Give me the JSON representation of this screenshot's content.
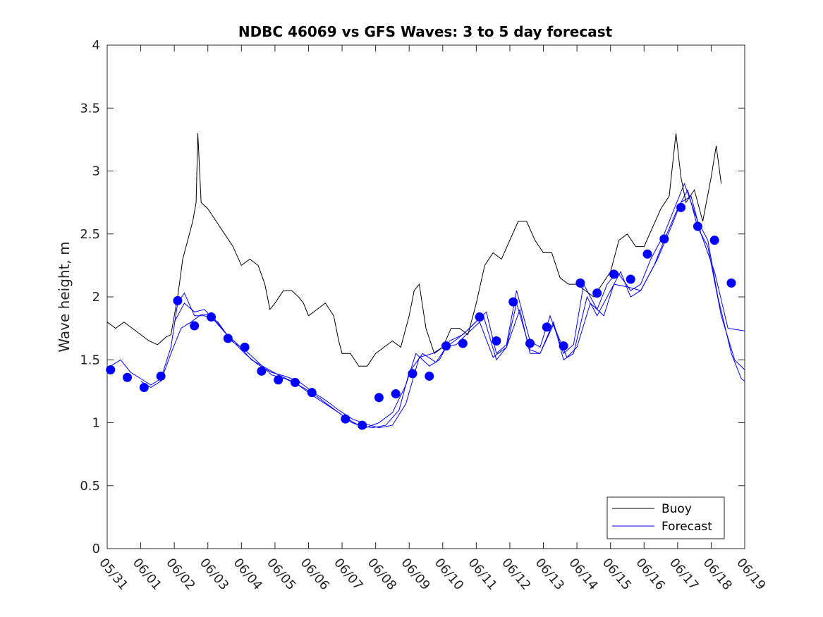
{
  "chart_data": {
    "type": "line",
    "title": "NDBC 46069 vs GFS Waves: 3 to 5 day forecast",
    "xlabel": "",
    "ylabel": "Wave height, m",
    "x_tick_labels": [
      "05/31",
      "06/01",
      "06/02",
      "06/03",
      "06/04",
      "06/05",
      "06/06",
      "06/07",
      "06/08",
      "06/09",
      "06/10",
      "06/11",
      "06/12",
      "06/13",
      "06/14",
      "06/15",
      "06/16",
      "06/17",
      "06/18",
      "06/19"
    ],
    "x_unit": "days since 05/31",
    "xlim": [
      0,
      19
    ],
    "ylim": [
      0,
      4
    ],
    "y_ticks": [
      0,
      0.5,
      1,
      1.5,
      2,
      2.5,
      3,
      3.5,
      4
    ],
    "grid": false,
    "legend_position": "bottom-right",
    "colors": {
      "buoy": "#000000",
      "forecast": "#0000ff",
      "markers": "#0000ff",
      "axes": "#262626"
    },
    "series": [
      {
        "name": "Buoy",
        "style": "line",
        "points": [
          [
            0.0,
            1.8
          ],
          [
            0.25,
            1.75
          ],
          [
            0.5,
            1.8
          ],
          [
            0.75,
            1.75
          ],
          [
            1.0,
            1.7
          ],
          [
            1.25,
            1.65
          ],
          [
            1.5,
            1.62
          ],
          [
            1.75,
            1.68
          ],
          [
            1.9,
            1.7
          ],
          [
            2.1,
            2.0
          ],
          [
            2.25,
            2.3
          ],
          [
            2.4,
            2.45
          ],
          [
            2.55,
            2.6
          ],
          [
            2.65,
            2.75
          ],
          [
            2.7,
            3.3
          ],
          [
            2.8,
            2.75
          ],
          [
            3.0,
            2.7
          ],
          [
            3.25,
            2.6
          ],
          [
            3.5,
            2.5
          ],
          [
            3.75,
            2.4
          ],
          [
            4.0,
            2.25
          ],
          [
            4.25,
            2.3
          ],
          [
            4.5,
            2.25
          ],
          [
            4.7,
            2.1
          ],
          [
            4.85,
            1.9
          ],
          [
            5.0,
            1.95
          ],
          [
            5.25,
            2.05
          ],
          [
            5.5,
            2.05
          ],
          [
            5.7,
            2.0
          ],
          [
            5.85,
            1.95
          ],
          [
            6.0,
            1.85
          ],
          [
            6.25,
            1.9
          ],
          [
            6.5,
            1.95
          ],
          [
            6.75,
            1.85
          ],
          [
            6.9,
            1.65
          ],
          [
            7.0,
            1.55
          ],
          [
            7.25,
            1.55
          ],
          [
            7.5,
            1.45
          ],
          [
            7.75,
            1.45
          ],
          [
            8.0,
            1.55
          ],
          [
            8.25,
            1.6
          ],
          [
            8.5,
            1.65
          ],
          [
            8.75,
            1.6
          ],
          [
            9.0,
            1.85
          ],
          [
            9.15,
            2.05
          ],
          [
            9.3,
            2.1
          ],
          [
            9.5,
            1.75
          ],
          [
            9.75,
            1.55
          ],
          [
            10.0,
            1.6
          ],
          [
            10.25,
            1.75
          ],
          [
            10.5,
            1.75
          ],
          [
            10.75,
            1.7
          ],
          [
            11.0,
            1.95
          ],
          [
            11.25,
            2.25
          ],
          [
            11.5,
            2.35
          ],
          [
            11.75,
            2.3
          ],
          [
            12.0,
            2.45
          ],
          [
            12.25,
            2.6
          ],
          [
            12.5,
            2.6
          ],
          [
            12.75,
            2.45
          ],
          [
            13.0,
            2.35
          ],
          [
            13.25,
            2.35
          ],
          [
            13.5,
            2.15
          ],
          [
            13.75,
            2.1
          ],
          [
            14.0,
            2.1
          ],
          [
            14.25,
            2.05
          ],
          [
            14.5,
            2.0
          ],
          [
            14.75,
            2.1
          ],
          [
            15.0,
            2.2
          ],
          [
            15.25,
            2.45
          ],
          [
            15.5,
            2.5
          ],
          [
            15.75,
            2.4
          ],
          [
            16.0,
            2.4
          ],
          [
            16.25,
            2.55
          ],
          [
            16.5,
            2.7
          ],
          [
            16.75,
            2.8
          ],
          [
            16.95,
            3.3
          ],
          [
            17.1,
            2.95
          ],
          [
            17.25,
            2.75
          ],
          [
            17.5,
            2.85
          ],
          [
            17.75,
            2.6
          ],
          [
            18.0,
            2.95
          ],
          [
            18.15,
            3.2
          ],
          [
            18.3,
            2.9
          ]
        ]
      },
      {
        "name": "Forecast",
        "style": "line",
        "ensemble": [
          [
            [
              0.1,
              1.45
            ],
            [
              0.4,
              1.5
            ],
            [
              0.7,
              1.4
            ],
            [
              1.0,
              1.35
            ],
            [
              1.3,
              1.3
            ],
            [
              1.6,
              1.35
            ],
            [
              1.9,
              1.6
            ],
            [
              2.1,
              1.95
            ],
            [
              2.3,
              2.03
            ],
            [
              2.6,
              1.85
            ],
            [
              2.9,
              1.85
            ],
            [
              3.3,
              1.8
            ],
            [
              3.7,
              1.65
            ],
            [
              4.1,
              1.58
            ],
            [
              4.5,
              1.48
            ],
            [
              4.9,
              1.38
            ],
            [
              5.3,
              1.35
            ],
            [
              5.7,
              1.3
            ],
            [
              6.1,
              1.22
            ],
            [
              6.5,
              1.15
            ],
            [
              6.9,
              1.08
            ],
            [
              7.3,
              1.0
            ],
            [
              7.7,
              0.96
            ],
            [
              8.1,
              1.0
            ],
            [
              8.5,
              1.08
            ],
            [
              8.9,
              1.3
            ],
            [
              9.2,
              1.55
            ],
            [
              9.6,
              1.45
            ],
            [
              9.9,
              1.5
            ],
            [
              10.2,
              1.65
            ],
            [
              10.6,
              1.7
            ],
            [
              10.9,
              1.78
            ],
            [
              11.3,
              1.88
            ],
            [
              11.6,
              1.55
            ],
            [
              11.9,
              1.62
            ],
            [
              12.2,
              2.05
            ],
            [
              12.6,
              1.65
            ],
            [
              12.9,
              1.6
            ],
            [
              13.2,
              1.85
            ],
            [
              13.6,
              1.55
            ],
            [
              13.9,
              1.62
            ],
            [
              14.2,
              2.1
            ],
            [
              14.6,
              1.9
            ],
            [
              14.9,
              2.1
            ],
            [
              15.2,
              2.2
            ],
            [
              15.6,
              2.05
            ],
            [
              15.9,
              2.1
            ],
            [
              16.2,
              2.3
            ],
            [
              16.6,
              2.5
            ],
            [
              16.9,
              2.7
            ],
            [
              17.2,
              2.9
            ],
            [
              17.6,
              2.6
            ],
            [
              17.9,
              2.45
            ],
            [
              18.2,
              2.0
            ],
            [
              18.6,
              1.55
            ],
            [
              18.9,
              1.35
            ],
            [
              19.0,
              1.33
            ]
          ],
          [
            [
              1.0,
              1.33
            ],
            [
              1.3,
              1.28
            ],
            [
              1.6,
              1.33
            ],
            [
              1.9,
              1.55
            ],
            [
              2.2,
              1.75
            ],
            [
              2.5,
              1.8
            ],
            [
              2.8,
              1.86
            ],
            [
              3.1,
              1.86
            ],
            [
              3.5,
              1.72
            ],
            [
              3.9,
              1.62
            ],
            [
              4.3,
              1.5
            ],
            [
              4.7,
              1.44
            ],
            [
              5.1,
              1.38
            ],
            [
              5.5,
              1.33
            ],
            [
              5.9,
              1.27
            ],
            [
              6.3,
              1.2
            ],
            [
              6.7,
              1.12
            ],
            [
              7.1,
              1.04
            ],
            [
              7.5,
              0.98
            ],
            [
              7.9,
              0.96
            ],
            [
              8.3,
              0.98
            ],
            [
              8.7,
              1.1
            ],
            [
              9.0,
              1.4
            ],
            [
              9.4,
              1.55
            ],
            [
              9.8,
              1.48
            ],
            [
              10.1,
              1.6
            ],
            [
              10.5,
              1.68
            ],
            [
              10.8,
              1.75
            ],
            [
              11.2,
              1.86
            ],
            [
              11.6,
              1.5
            ],
            [
              11.9,
              1.6
            ],
            [
              12.2,
              1.95
            ],
            [
              12.6,
              1.58
            ],
            [
              12.9,
              1.55
            ],
            [
              13.3,
              1.8
            ],
            [
              13.6,
              1.5
            ],
            [
              13.9,
              1.55
            ],
            [
              14.3,
              2.0
            ],
            [
              14.6,
              1.85
            ],
            [
              14.9,
              2.0
            ],
            [
              15.3,
              2.2
            ],
            [
              15.6,
              2.0
            ],
            [
              15.9,
              2.05
            ],
            [
              16.3,
              2.25
            ],
            [
              16.6,
              2.45
            ],
            [
              17.0,
              2.7
            ],
            [
              17.3,
              2.85
            ],
            [
              17.6,
              2.55
            ],
            [
              17.9,
              2.4
            ],
            [
              18.3,
              1.85
            ],
            [
              18.7,
              1.5
            ],
            [
              19.0,
              1.42
            ]
          ],
          [
            [
              2.0,
              1.8
            ],
            [
              2.3,
              1.95
            ],
            [
              2.6,
              1.88
            ],
            [
              2.9,
              1.9
            ],
            [
              3.3,
              1.78
            ],
            [
              3.7,
              1.66
            ],
            [
              4.1,
              1.55
            ],
            [
              4.5,
              1.46
            ],
            [
              4.9,
              1.4
            ],
            [
              5.3,
              1.37
            ],
            [
              5.7,
              1.33
            ],
            [
              6.1,
              1.25
            ],
            [
              6.5,
              1.18
            ],
            [
              6.9,
              1.1
            ],
            [
              7.3,
              1.03
            ],
            [
              7.7,
              0.99
            ],
            [
              8.1,
              0.96
            ],
            [
              8.5,
              0.98
            ],
            [
              8.9,
              1.15
            ],
            [
              9.3,
              1.52
            ],
            [
              9.7,
              1.55
            ],
            [
              10.0,
              1.6
            ],
            [
              10.4,
              1.62
            ],
            [
              10.7,
              1.7
            ],
            [
              11.1,
              1.8
            ],
            [
              11.5,
              1.52
            ],
            [
              11.9,
              1.6
            ],
            [
              12.3,
              1.9
            ],
            [
              12.6,
              1.55
            ],
            [
              12.9,
              1.55
            ],
            [
              13.3,
              1.78
            ],
            [
              13.7,
              1.52
            ],
            [
              14.0,
              1.6
            ],
            [
              14.4,
              1.95
            ],
            [
              14.8,
              1.85
            ],
            [
              15.1,
              2.1
            ],
            [
              15.5,
              2.08
            ],
            [
              15.9,
              2.05
            ],
            [
              16.4,
              2.3
            ],
            [
              16.8,
              2.55
            ],
            [
              17.1,
              2.75
            ],
            [
              17.4,
              2.8
            ],
            [
              17.7,
              2.5
            ],
            [
              18.1,
              2.2
            ],
            [
              18.5,
              1.75
            ],
            [
              19.0,
              1.73
            ]
          ]
        ]
      },
      {
        "name": "",
        "style": "markers",
        "points": [
          [
            0.1,
            1.42
          ],
          [
            0.6,
            1.36
          ],
          [
            1.1,
            1.28
          ],
          [
            1.6,
            1.37
          ],
          [
            2.1,
            1.97
          ],
          [
            2.6,
            1.77
          ],
          [
            3.1,
            1.84
          ],
          [
            3.6,
            1.67
          ],
          [
            4.1,
            1.6
          ],
          [
            4.6,
            1.41
          ],
          [
            5.1,
            1.34
          ],
          [
            5.6,
            1.32
          ],
          [
            6.1,
            1.24
          ],
          [
            7.1,
            1.03
          ],
          [
            7.6,
            0.98
          ],
          [
            8.1,
            1.2
          ],
          [
            8.6,
            1.23
          ],
          [
            9.1,
            1.39
          ],
          [
            9.6,
            1.37
          ],
          [
            10.1,
            1.61
          ],
          [
            10.6,
            1.63
          ],
          [
            11.1,
            1.84
          ],
          [
            11.6,
            1.65
          ],
          [
            12.1,
            1.96
          ],
          [
            12.6,
            1.63
          ],
          [
            13.1,
            1.76
          ],
          [
            13.6,
            1.61
          ],
          [
            14.1,
            2.11
          ],
          [
            14.6,
            2.03
          ],
          [
            15.1,
            2.18
          ],
          [
            15.6,
            2.14
          ],
          [
            16.1,
            2.34
          ],
          [
            16.6,
            2.46
          ],
          [
            17.1,
            2.71
          ],
          [
            17.6,
            2.56
          ],
          [
            18.1,
            2.45
          ],
          [
            18.6,
            2.11
          ]
        ]
      }
    ]
  }
}
